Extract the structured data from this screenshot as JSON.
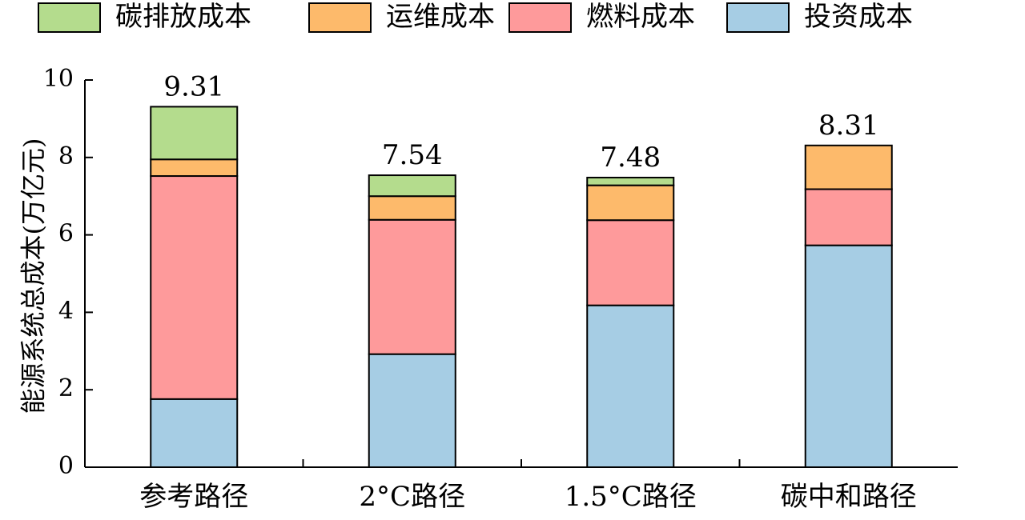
{
  "chart_data": {
    "type": "bar",
    "stacked": true,
    "categories": [
      "参考路径",
      "2°C路径",
      "1.5°C路径",
      "碳中和路径"
    ],
    "series": [
      {
        "name": "投资成本",
        "color": "#a6cde4",
        "values": [
          1.76,
          2.92,
          4.18,
          5.73
        ]
      },
      {
        "name": "燃料成本",
        "color": "#fe9a9b",
        "values": [
          5.76,
          3.47,
          2.2,
          1.45
        ]
      },
      {
        "name": "运维成本",
        "color": "#fdba6b",
        "values": [
          0.43,
          0.61,
          0.9,
          1.13
        ]
      },
      {
        "name": "碳排放成本",
        "color": "#b4dc8d",
        "values": [
          1.36,
          0.54,
          0.2,
          0.0
        ]
      }
    ],
    "totals": [
      "9.31",
      "7.54",
      "7.48",
      "8.31"
    ],
    "legend_order": [
      "碳排放成本",
      "运维成本",
      "燃料成本",
      "投资成本"
    ],
    "legend_position": "top",
    "ylabel": "能源系统总成本(万亿元)",
    "xlabel": "",
    "ylim": [
      0,
      10
    ],
    "yticks": [
      "0",
      "2",
      "4",
      "6",
      "8",
      "10"
    ],
    "grid": false
  }
}
